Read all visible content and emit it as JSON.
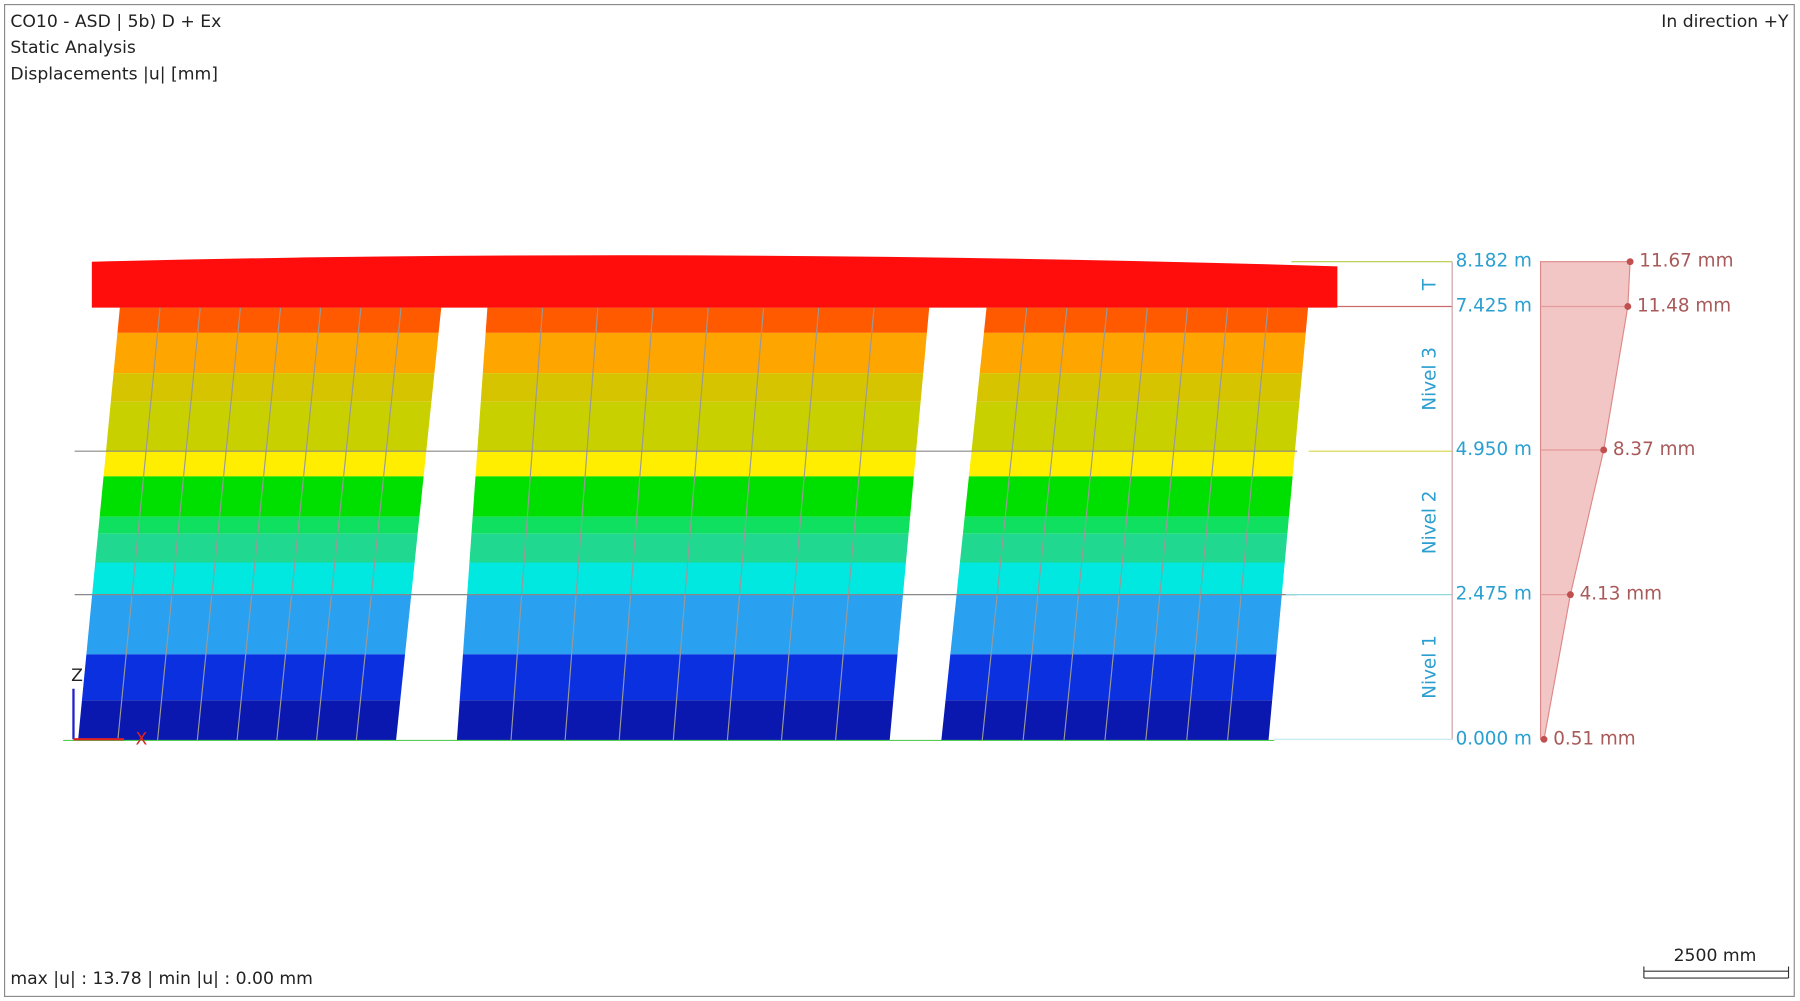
{
  "header": {
    "title": "CO10 - ASD | 5b) D + Ex",
    "analysis": "Static Analysis",
    "result": "Displacements |u| [mm]",
    "direction": "In direction +Y"
  },
  "levels": [
    {
      "elevation": "8.182 m",
      "displacement": "11.67 mm"
    },
    {
      "elevation": "7.425 m",
      "displacement": "11.48 mm"
    },
    {
      "elevation": "4.950 m",
      "displacement": "8.37 mm"
    },
    {
      "elevation": "2.475 m",
      "displacement": "4.13 mm"
    },
    {
      "elevation": "0.000 m",
      "displacement": "0.51 mm"
    }
  ],
  "stories": [
    "T",
    "Nivel 3",
    "Nivel 2",
    "Nivel 1"
  ],
  "axes": {
    "z": "Z",
    "x": "X"
  },
  "footer": {
    "summary": "max |u| : 13.78 | min |u| : 0.00 mm",
    "scale": "2500 mm"
  }
}
